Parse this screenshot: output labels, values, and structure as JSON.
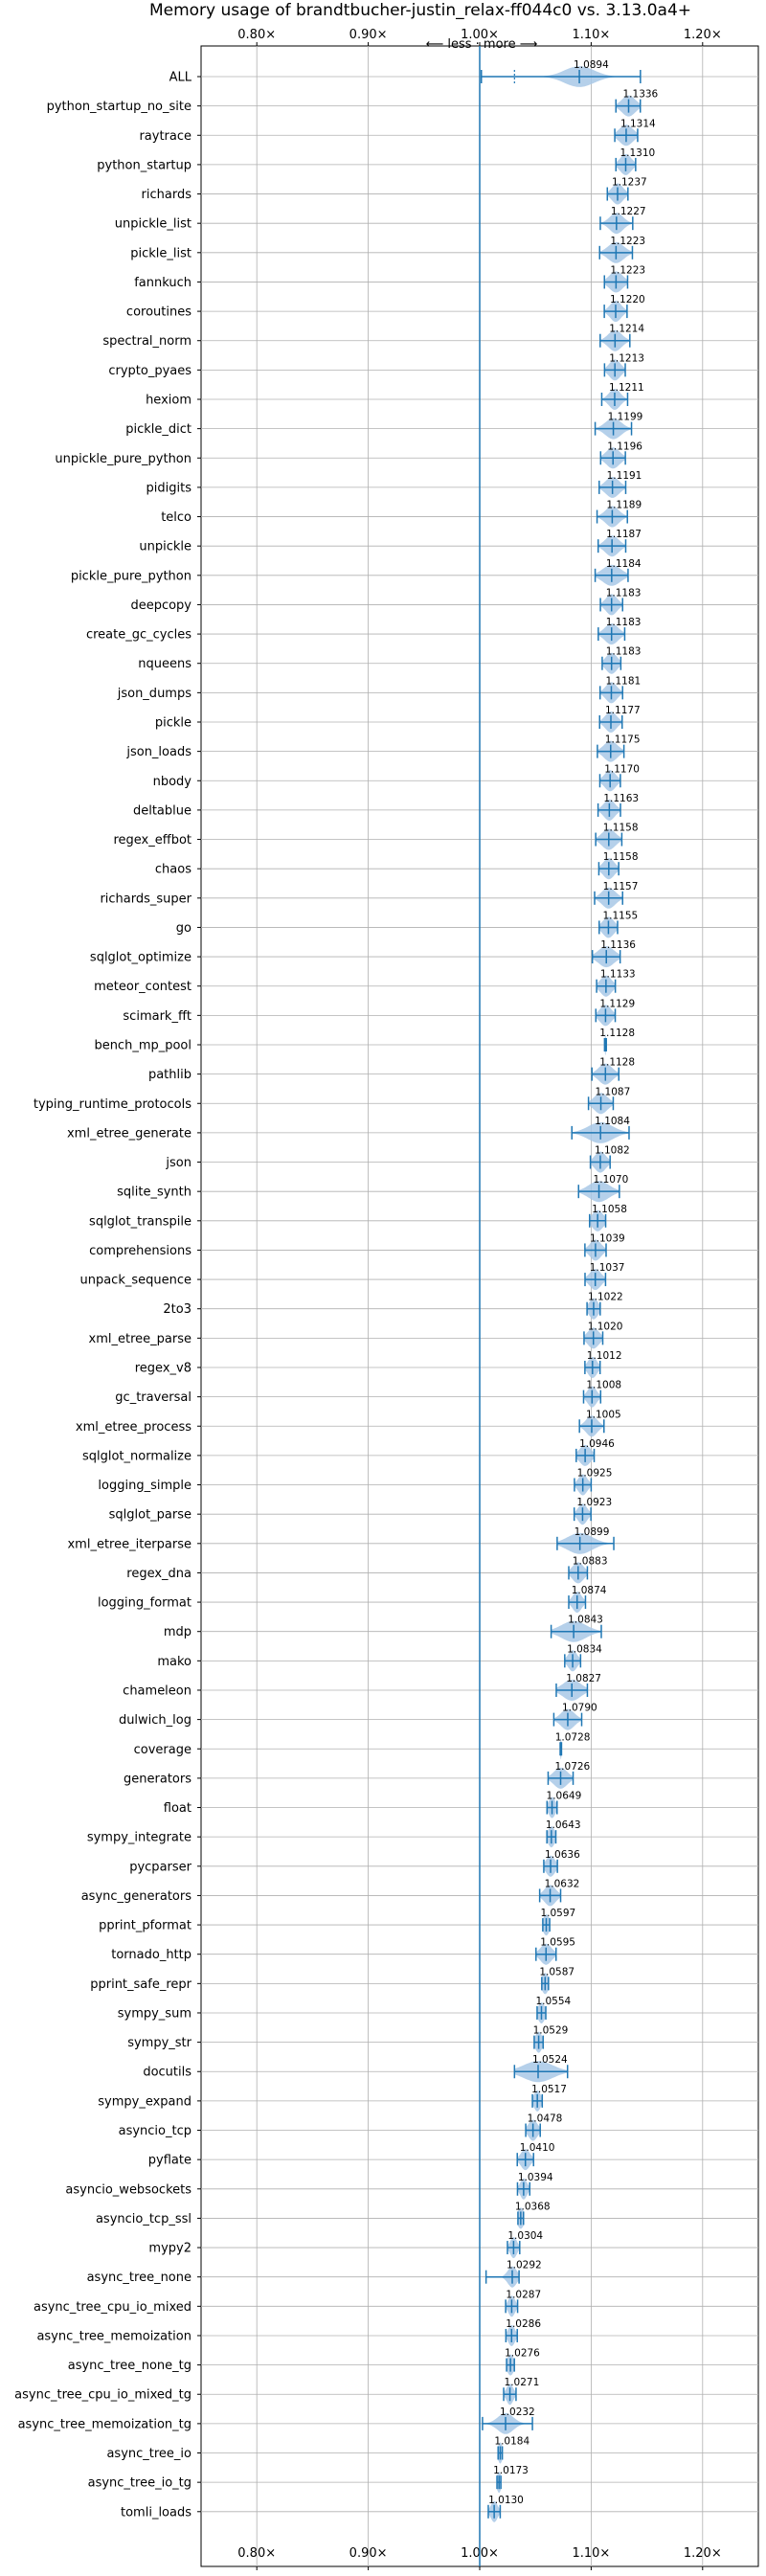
{
  "chart_data": {
    "type": "violin",
    "title": "Memory usage of brandtbucher-justin_relax-ff044c0 vs. 3.13.0a4+",
    "direction_label": "⟵ less · more ⟶",
    "xlim": [
      0.75,
      1.25
    ],
    "x_ticks": [
      0.8,
      0.9,
      1.0,
      1.1,
      1.2
    ],
    "x_tick_labels": [
      "0.80×",
      "0.90×",
      "1.00×",
      "1.10×",
      "1.20×"
    ],
    "reference_line": 1.0,
    "grid": true,
    "accent_color": "#1f77b4",
    "violin_color": "#a8c8e6",
    "series": [
      {
        "label": "ALL",
        "value": "1.0894",
        "mean": 1.0894,
        "min": 1.0015,
        "max": 1.1442,
        "spread": 0.013,
        "dotted_low": 1.0312
      },
      {
        "label": "python_startup_no_site",
        "value": "1.1336",
        "mean": 1.1336,
        "min": 1.1222,
        "max": 1.1441,
        "spread": 0.006
      },
      {
        "label": "raytrace",
        "value": "1.1314",
        "mean": 1.1314,
        "min": 1.1212,
        "max": 1.1417,
        "spread": 0.006
      },
      {
        "label": "python_startup",
        "value": "1.1310",
        "mean": 1.131,
        "min": 1.1222,
        "max": 1.1399,
        "spread": 0.005
      },
      {
        "label": "richards",
        "value": "1.1237",
        "mean": 1.1237,
        "min": 1.1145,
        "max": 1.133,
        "spread": 0.005
      },
      {
        "label": "unpickle_list",
        "value": "1.1227",
        "mean": 1.1227,
        "min": 1.1082,
        "max": 1.1373,
        "spread": 0.006
      },
      {
        "label": "pickle_list",
        "value": "1.1223",
        "mean": 1.1223,
        "min": 1.1076,
        "max": 1.137,
        "spread": 0.007
      },
      {
        "label": "fannkuch",
        "value": "1.1223",
        "mean": 1.1223,
        "min": 1.1119,
        "max": 1.1327,
        "spread": 0.006
      },
      {
        "label": "coroutines",
        "value": "1.1220",
        "mean": 1.122,
        "min": 1.1118,
        "max": 1.1322,
        "spread": 0.005
      },
      {
        "label": "spectral_norm",
        "value": "1.1214",
        "mean": 1.1214,
        "min": 1.1081,
        "max": 1.1347,
        "spread": 0.006
      },
      {
        "label": "crypto_pyaes",
        "value": "1.1213",
        "mean": 1.1213,
        "min": 1.112,
        "max": 1.1306,
        "spread": 0.005
      },
      {
        "label": "hexiom",
        "value": "1.1211",
        "mean": 1.1211,
        "min": 1.1095,
        "max": 1.1327,
        "spread": 0.005
      },
      {
        "label": "pickle_dict",
        "value": "1.1199",
        "mean": 1.1199,
        "min": 1.1036,
        "max": 1.1362,
        "spread": 0.007
      },
      {
        "label": "unpickle_pure_python",
        "value": "1.1196",
        "mean": 1.1196,
        "min": 1.1085,
        "max": 1.1307,
        "spread": 0.006
      },
      {
        "label": "pidigits",
        "value": "1.1191",
        "mean": 1.1191,
        "min": 1.1072,
        "max": 1.131,
        "spread": 0.006
      },
      {
        "label": "telco",
        "value": "1.1189",
        "mean": 1.1189,
        "min": 1.1053,
        "max": 1.1325,
        "spread": 0.006
      },
      {
        "label": "unpickle",
        "value": "1.1187",
        "mean": 1.1187,
        "min": 1.1063,
        "max": 1.131,
        "spread": 0.006
      },
      {
        "label": "pickle_pure_python",
        "value": "1.1184",
        "mean": 1.1184,
        "min": 1.1036,
        "max": 1.1331,
        "spread": 0.008
      },
      {
        "label": "deepcopy",
        "value": "1.1183",
        "mean": 1.1183,
        "min": 1.1083,
        "max": 1.1282,
        "spread": 0.005
      },
      {
        "label": "create_gc_cycles",
        "value": "1.1183",
        "mean": 1.1183,
        "min": 1.1064,
        "max": 1.1301,
        "spread": 0.006
      },
      {
        "label": "nqueens",
        "value": "1.1183",
        "mean": 1.1183,
        "min": 1.1099,
        "max": 1.1266,
        "spread": 0.005
      },
      {
        "label": "json_dumps",
        "value": "1.1181",
        "mean": 1.1181,
        "min": 1.108,
        "max": 1.1282,
        "spread": 0.005
      },
      {
        "label": "pickle",
        "value": "1.1177",
        "mean": 1.1177,
        "min": 1.1076,
        "max": 1.1278,
        "spread": 0.005
      },
      {
        "label": "json_loads",
        "value": "1.1175",
        "mean": 1.1175,
        "min": 1.1056,
        "max": 1.1294,
        "spread": 0.006
      },
      {
        "label": "nbody",
        "value": "1.1170",
        "mean": 1.117,
        "min": 1.1078,
        "max": 1.1262,
        "spread": 0.005
      },
      {
        "label": "deltablue",
        "value": "1.1163",
        "mean": 1.1163,
        "min": 1.1062,
        "max": 1.1263,
        "spread": 0.005
      },
      {
        "label": "regex_effbot",
        "value": "1.1158",
        "mean": 1.1158,
        "min": 1.1041,
        "max": 1.1275,
        "spread": 0.006
      },
      {
        "label": "chaos",
        "value": "1.1158",
        "mean": 1.1158,
        "min": 1.1069,
        "max": 1.1247,
        "spread": 0.005
      },
      {
        "label": "richards_super",
        "value": "1.1157",
        "mean": 1.1157,
        "min": 1.1031,
        "max": 1.1282,
        "spread": 0.006
      },
      {
        "label": "go",
        "value": "1.1155",
        "mean": 1.1155,
        "min": 1.1072,
        "max": 1.1237,
        "spread": 0.005
      },
      {
        "label": "sqlglot_optimize",
        "value": "1.1136",
        "mean": 1.1136,
        "min": 1.1011,
        "max": 1.126,
        "spread": 0.007
      },
      {
        "label": "meteor_contest",
        "value": "1.1133",
        "mean": 1.1133,
        "min": 1.1049,
        "max": 1.1217,
        "spread": 0.005
      },
      {
        "label": "scimark_fft",
        "value": "1.1129",
        "mean": 1.1129,
        "min": 1.1042,
        "max": 1.1216,
        "spread": 0.005
      },
      {
        "label": "bench_mp_pool",
        "value": "1.1128",
        "mean": 1.1128,
        "min": 1.112,
        "max": 1.1136,
        "spread": 0.0006
      },
      {
        "label": "pathlib",
        "value": "1.1128",
        "mean": 1.1128,
        "min": 1.1007,
        "max": 1.1248,
        "spread": 0.006
      },
      {
        "label": "typing_runtime_protocols",
        "value": "1.1087",
        "mean": 1.1087,
        "min": 1.0976,
        "max": 1.1198,
        "spread": 0.006
      },
      {
        "label": "xml_etree_generate",
        "value": "1.1084",
        "mean": 1.1084,
        "min": 1.0827,
        "max": 1.134,
        "spread": 0.011
      },
      {
        "label": "json",
        "value": "1.1082",
        "mean": 1.1082,
        "min": 1.0993,
        "max": 1.117,
        "spread": 0.005
      },
      {
        "label": "sqlite_synth",
        "value": "1.1070",
        "mean": 1.107,
        "min": 1.0887,
        "max": 1.1253,
        "spread": 0.009
      },
      {
        "label": "sqlglot_transpile",
        "value": "1.1058",
        "mean": 1.1058,
        "min": 1.0986,
        "max": 1.113,
        "spread": 0.005
      },
      {
        "label": "comprehensions",
        "value": "1.1039",
        "mean": 1.1039,
        "min": 1.0944,
        "max": 1.1134,
        "spread": 0.005
      },
      {
        "label": "unpack_sequence",
        "value": "1.1037",
        "mean": 1.1037,
        "min": 1.0945,
        "max": 1.1129,
        "spread": 0.005
      },
      {
        "label": "2to3",
        "value": "1.1022",
        "mean": 1.1022,
        "min": 1.0963,
        "max": 1.1081,
        "spread": 0.004
      },
      {
        "label": "xml_etree_parse",
        "value": "1.1020",
        "mean": 1.102,
        "min": 1.0936,
        "max": 1.1104,
        "spread": 0.005
      },
      {
        "label": "regex_v8",
        "value": "1.1012",
        "mean": 1.1012,
        "min": 1.0944,
        "max": 1.108,
        "spread": 0.004
      },
      {
        "label": "gc_traversal",
        "value": "1.1008",
        "mean": 1.1008,
        "min": 1.0932,
        "max": 1.1085,
        "spread": 0.004
      },
      {
        "label": "xml_etree_process",
        "value": "1.1005",
        "mean": 1.1005,
        "min": 1.0895,
        "max": 1.1115,
        "spread": 0.005
      },
      {
        "label": "sqlglot_normalize",
        "value": "1.0946",
        "mean": 1.0946,
        "min": 1.0866,
        "max": 1.1027,
        "spread": 0.005
      },
      {
        "label": "logging_simple",
        "value": "1.0925",
        "mean": 1.0925,
        "min": 1.085,
        "max": 1.1,
        "spread": 0.004
      },
      {
        "label": "sqlglot_parse",
        "value": "1.0923",
        "mean": 1.0923,
        "min": 1.0848,
        "max": 1.0998,
        "spread": 0.004
      },
      {
        "label": "xml_etree_iterparse",
        "value": "1.0899",
        "mean": 1.0899,
        "min": 1.0695,
        "max": 1.1203,
        "spread": 0.011
      },
      {
        "label": "regex_dna",
        "value": "1.0883",
        "mean": 1.0883,
        "min": 1.0799,
        "max": 1.0966,
        "spread": 0.005
      },
      {
        "label": "logging_format",
        "value": "1.0874",
        "mean": 1.0874,
        "min": 1.0799,
        "max": 1.0949,
        "spread": 0.004
      },
      {
        "label": "mdp",
        "value": "1.0843",
        "mean": 1.0843,
        "min": 1.0641,
        "max": 1.1091,
        "spread": 0.011
      },
      {
        "label": "mako",
        "value": "1.0834",
        "mean": 1.0834,
        "min": 1.0763,
        "max": 1.0905,
        "spread": 0.004
      },
      {
        "label": "chameleon",
        "value": "1.0827",
        "mean": 1.0827,
        "min": 1.0687,
        "max": 1.0966,
        "spread": 0.008
      },
      {
        "label": "dulwich_log",
        "value": "1.0790",
        "mean": 1.079,
        "min": 1.0665,
        "max": 1.0915,
        "spread": 0.006
      },
      {
        "label": "coverage",
        "value": "1.0728",
        "mean": 1.0728,
        "min": 1.0722,
        "max": 1.0734,
        "spread": 0.0006
      },
      {
        "label": "generators",
        "value": "1.0726",
        "mean": 1.0726,
        "min": 1.0614,
        "max": 1.0838,
        "spread": 0.006
      },
      {
        "label": "float",
        "value": "1.0649",
        "mean": 1.0649,
        "min": 1.0604,
        "max": 1.0694,
        "spread": 0.003
      },
      {
        "label": "sympy_integrate",
        "value": "1.0643",
        "mean": 1.0643,
        "min": 1.0603,
        "max": 1.0683,
        "spread": 0.003
      },
      {
        "label": "pycparser",
        "value": "1.0636",
        "mean": 1.0636,
        "min": 1.0575,
        "max": 1.0697,
        "spread": 0.004
      },
      {
        "label": "async_generators",
        "value": "1.0632",
        "mean": 1.0632,
        "min": 1.0538,
        "max": 1.0726,
        "spread": 0.005
      },
      {
        "label": "pprint_pformat",
        "value": "1.0597",
        "mean": 1.0597,
        "min": 1.0566,
        "max": 1.0628,
        "spread": 0.003
      },
      {
        "label": "tornado_http",
        "value": "1.0595",
        "mean": 1.0595,
        "min": 1.0505,
        "max": 1.0685,
        "spread": 0.005
      },
      {
        "label": "pprint_safe_repr",
        "value": "1.0587",
        "mean": 1.0587,
        "min": 1.0557,
        "max": 1.0617,
        "spread": 0.003
      },
      {
        "label": "sympy_sum",
        "value": "1.0554",
        "mean": 1.0554,
        "min": 1.0515,
        "max": 1.0593,
        "spread": 0.003
      },
      {
        "label": "sympy_str",
        "value": "1.0529",
        "mean": 1.0529,
        "min": 1.0489,
        "max": 1.0569,
        "spread": 0.003
      },
      {
        "label": "docutils",
        "value": "1.0524",
        "mean": 1.0524,
        "min": 1.0312,
        "max": 1.0788,
        "spread": 0.013
      },
      {
        "label": "sympy_expand",
        "value": "1.0517",
        "mean": 1.0517,
        "min": 1.0473,
        "max": 1.0561,
        "spread": 0.003
      },
      {
        "label": "asyncio_tcp",
        "value": "1.0478",
        "mean": 1.0478,
        "min": 1.0413,
        "max": 1.0543,
        "spread": 0.004
      },
      {
        "label": "pyflate",
        "value": "1.0410",
        "mean": 1.041,
        "min": 1.0337,
        "max": 1.0483,
        "spread": 0.004
      },
      {
        "label": "asyncio_websockets",
        "value": "1.0394",
        "mean": 1.0394,
        "min": 1.0339,
        "max": 1.0449,
        "spread": 0.003
      },
      {
        "label": "asyncio_tcp_ssl",
        "value": "1.0368",
        "mean": 1.0368,
        "min": 1.0343,
        "max": 1.0393,
        "spread": 0.003
      },
      {
        "label": "mypy2",
        "value": "1.0304",
        "mean": 1.0304,
        "min": 1.0249,
        "max": 1.0359,
        "spread": 0.003
      },
      {
        "label": "async_tree_none",
        "value": "1.0292",
        "mean": 1.0292,
        "min": 1.0057,
        "max": 1.0353,
        "spread": 0.004
      },
      {
        "label": "async_tree_cpu_io_mixed",
        "value": "1.0287",
        "mean": 1.0287,
        "min": 1.0233,
        "max": 1.034,
        "spread": 0.003
      },
      {
        "label": "async_tree_memoization",
        "value": "1.0286",
        "mean": 1.0286,
        "min": 1.0235,
        "max": 1.0337,
        "spread": 0.003
      },
      {
        "label": "async_tree_none_tg",
        "value": "1.0276",
        "mean": 1.0276,
        "min": 1.0241,
        "max": 1.0311,
        "spread": 0.003
      },
      {
        "label": "async_tree_cpu_io_mixed_tg",
        "value": "1.0271",
        "mean": 1.0271,
        "min": 1.0215,
        "max": 1.0326,
        "spread": 0.003
      },
      {
        "label": "async_tree_memoization_tg",
        "value": "1.0232",
        "mean": 1.0232,
        "min": 1.0025,
        "max": 1.0473,
        "spread": 0.007
      },
      {
        "label": "async_tree_io",
        "value": "1.0184",
        "mean": 1.0184,
        "min": 1.0165,
        "max": 1.0203,
        "spread": 0.002
      },
      {
        "label": "async_tree_io_tg",
        "value": "1.0173",
        "mean": 1.0173,
        "min": 1.0155,
        "max": 1.019,
        "spread": 0.002
      },
      {
        "label": "tomli_loads",
        "value": "1.0130",
        "mean": 1.013,
        "min": 1.0077,
        "max": 1.0184,
        "spread": 0.003
      }
    ]
  }
}
